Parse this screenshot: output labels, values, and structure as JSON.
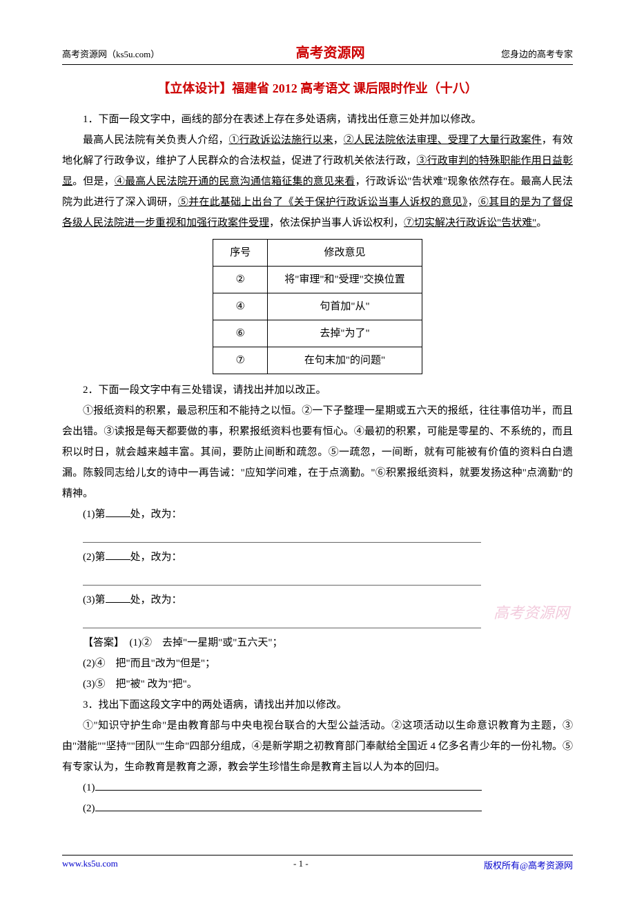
{
  "header": {
    "left": "高考资源网（ks5u.com）",
    "center": "高考资源网",
    "right": "您身边的高考专家"
  },
  "title": "【立体设计】福建省 2012 高考语文 课后限时作业（十八）",
  "q1": {
    "intro": "1．下面一段文字中，画线的部分在表述上存在多处语病，请找出任意三处并加以修改。",
    "body_pre": "最高人民法院有关负责人介绍，",
    "u1": "①行政诉讼法施行以来",
    "sep1": "，",
    "u2": "②人民法院依法审理、受理了大量行政案件",
    "mid1": "，有效地化解了行政争议，维护了人民群众的合法权益，促进了行政机关依法行政，",
    "u3": "③行政审判的特殊职能作用日益彰显",
    "mid2": "。但是，",
    "u4": "④最高人民法院开通的民意沟通信箱征集的意见来看",
    "mid3": "，行政诉讼\"告状难\"现象依然存在。最高人民法院为此进行了深入调研，",
    "u5": "⑤并在此基础上出台了《关于保护行政诉讼当事人诉权的意见》",
    "sep2": "，",
    "u6": "⑥其目的是为了督促各级人民法院进一步重视和加强行政案件受理",
    "mid4": "，依法保护当事人诉讼权利，",
    "u7": "⑦切实解决行政诉讼\"告状难\"",
    "end": "。"
  },
  "table": {
    "header": [
      "序号",
      "修改意见"
    ],
    "rows": [
      [
        "②",
        "将\"审理\"和\"受理\"交换位置"
      ],
      [
        "④",
        "句首加\"从\""
      ],
      [
        "⑥",
        "去掉\"为了\""
      ],
      [
        "⑦",
        "在句末加\"的问题\""
      ]
    ]
  },
  "q2": {
    "intro": "2．下面一段文字中有三处错误，请找出并加以改正。",
    "body": "①报纸资料的积累，最忌积压和不能持之以恒。②一下子整理一星期或五六天的报纸，往往事倍功半，而且会出错。③读报是每天都要做的事，积累报纸资料也要有恒心。④最初的积累，可能是零星的、不系统的，而且积以时日，就会越来越丰富。其间，要防止间断和疏忽。⑤一疏忽，一间断，就有可能被有价值的资料白白遗漏。陈毅同志给儿女的诗中一再告诫：\"应知学问难，在于点滴勤。\"⑥积累报纸资料，就要发扬这种\"点滴勤\"的精神。",
    "blank1_label": "(1)第",
    "blank1_suffix": "处，改为：",
    "blank2_label": "(2)第",
    "blank2_suffix": "处，改为：",
    "blank3_label": "(3)第",
    "blank3_suffix": "处，改为：",
    "answer_label": "【答案】",
    "answer1": "(1)②　去掉\"一星期\"或\"五六天\"；",
    "answer2": "(2)④　把\"而且\"改为\"但是\"；",
    "answer3": "(3)⑤　把\"被\" 改为\"把\"。"
  },
  "q3": {
    "intro": "3．找出下面这段文字中的两处语病，请找出并加以修改。",
    "body": "①\"知识守护生命\"是由教育部与中央电视台联合的大型公益活动。②这项活动以生命意识教育为主题，③由\"潜能\"\"坚持\"\"团队\"\"生命\"四部分组成，④是新学期之初教育部门奉献给全国近 4 亿多名青少年的一份礼物。⑤有专家认为，生命教育是教育之源，教会学生珍惜生命是教育主旨以人为本的回归。",
    "blank1": "(1)",
    "blank2": "(2)"
  },
  "watermark": "高考资源网",
  "footer": {
    "left": "www.ks5u.com",
    "center": "- 1 -",
    "right": "版权所有@高考资源网"
  },
  "colors": {
    "title_color": "#cc0000",
    "header_center_color": "#cc0000",
    "footer_link_color": "#0000cc",
    "watermark_color": "#e8a0c0",
    "text_color": "#000000",
    "background": "#ffffff"
  }
}
